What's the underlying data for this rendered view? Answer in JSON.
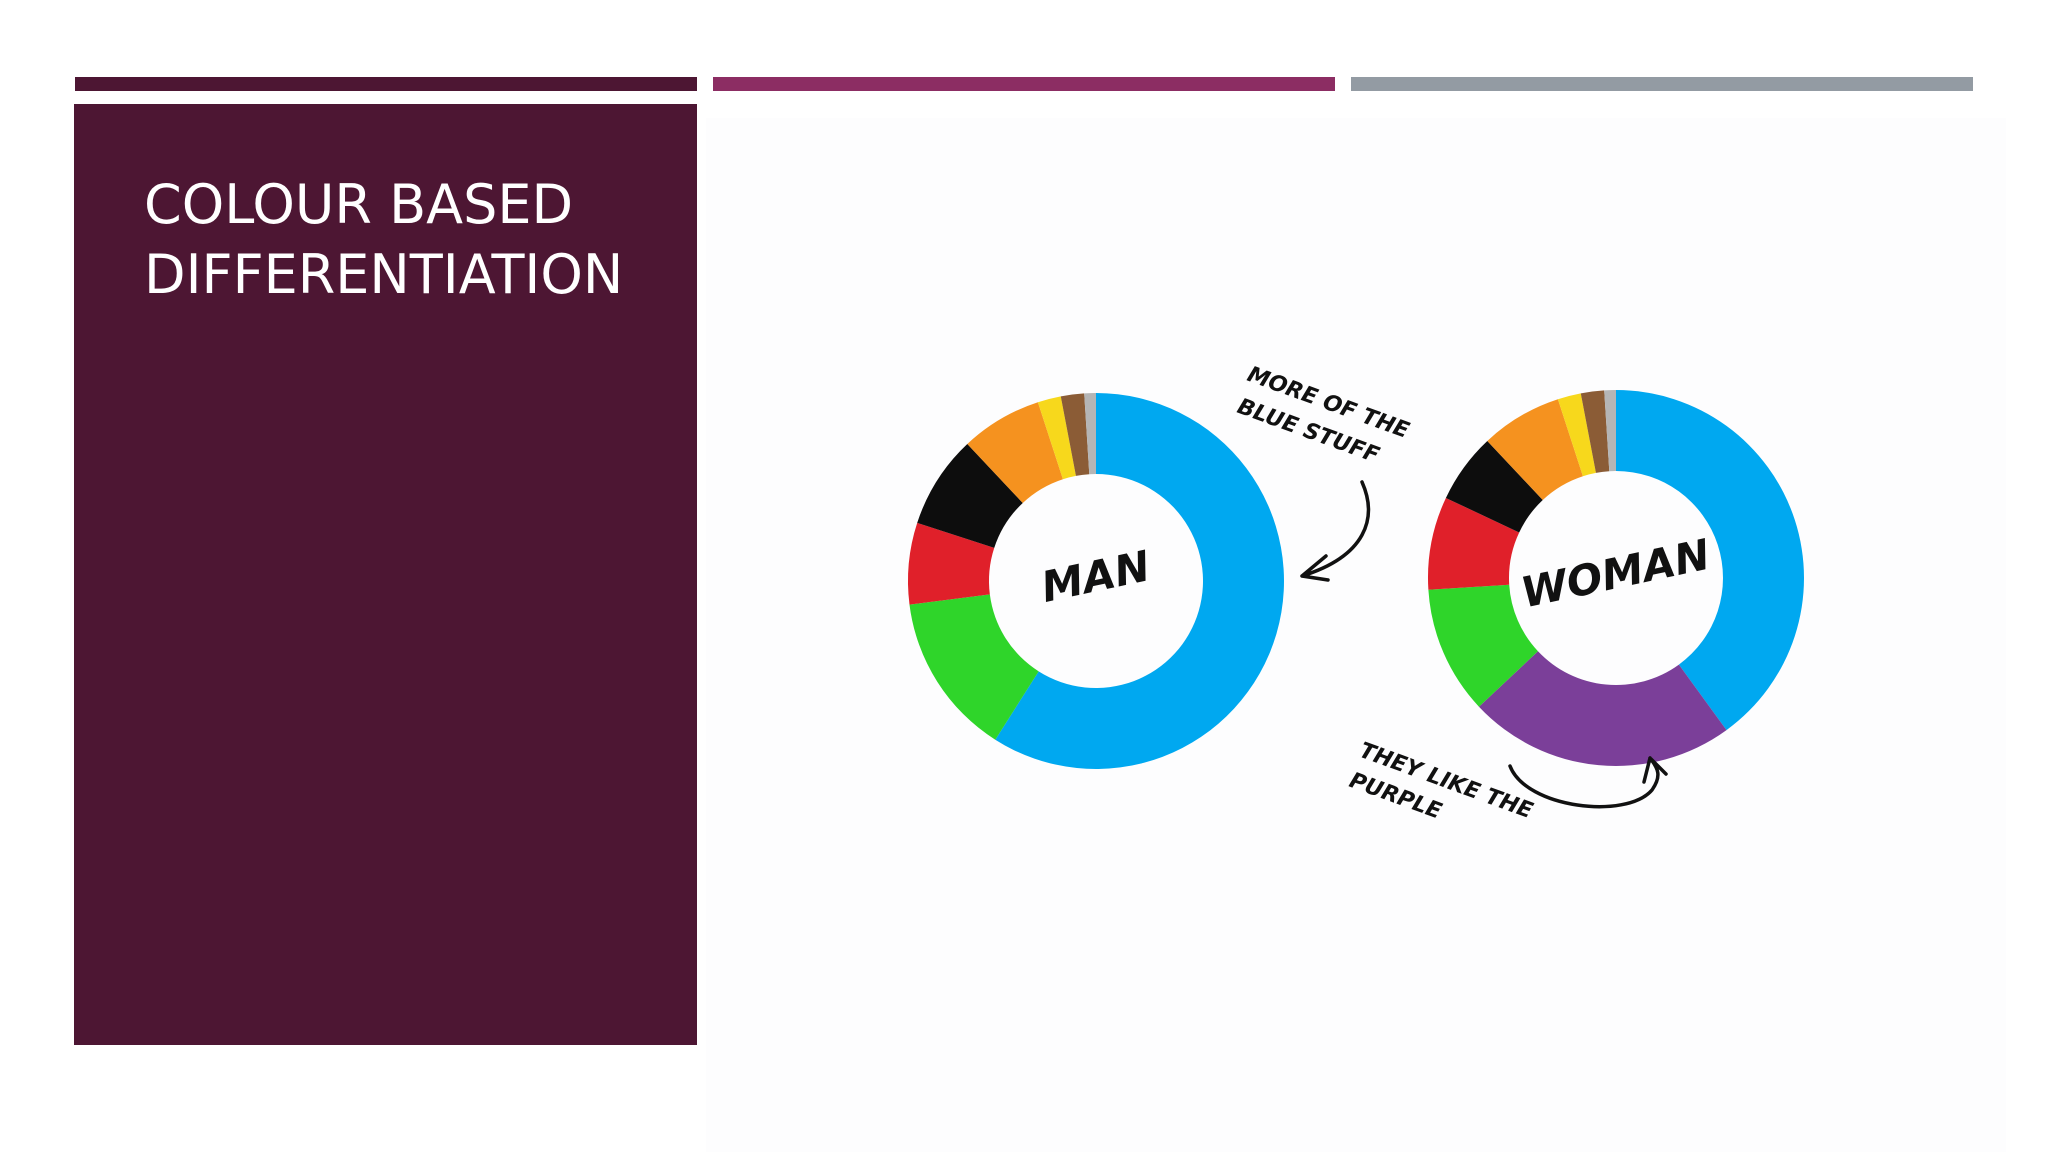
{
  "slide": {
    "title_lines": [
      "COLOUR BASED",
      "DIFFERENTIATION"
    ]
  },
  "colors": {
    "panel": "#4d1633",
    "accent_bar_1": "#4d1633",
    "accent_bar_2": "#8c2d63",
    "accent_bar_3": "#939ba3",
    "annotation_ink": "#111111"
  },
  "annotations": {
    "top_line1": "MORE OF THE",
    "top_line2": "BLUE STUFF",
    "bottom_line1": "THEY LIKE THE",
    "bottom_line2": "PURPLE"
  },
  "chart_data": [
    {
      "type": "pie",
      "donut": true,
      "center_label": "MAN",
      "segments": [
        {
          "color": "#00a8f0",
          "value": 59
        },
        {
          "color": "#2fd52a",
          "value": 14
        },
        {
          "color": "#e0202a",
          "value": 7
        },
        {
          "color": "#0d0d0d",
          "value": 8
        },
        {
          "color": "#f5921f",
          "value": 7
        },
        {
          "color": "#f7d81c",
          "value": 2
        },
        {
          "color": "#8b5c36",
          "value": 2
        },
        {
          "color": "#b5b5b5",
          "value": 1
        }
      ]
    },
    {
      "type": "pie",
      "donut": true,
      "center_label": "WOMAN",
      "segments": [
        {
          "color": "#00a8f0",
          "value": 40
        },
        {
          "color": "#7b3f99",
          "value": 23
        },
        {
          "color": "#2fd52a",
          "value": 11
        },
        {
          "color": "#e0202a",
          "value": 8
        },
        {
          "color": "#0d0d0d",
          "value": 6
        },
        {
          "color": "#f5921f",
          "value": 7
        },
        {
          "color": "#f7d81c",
          "value": 2
        },
        {
          "color": "#8b5c36",
          "value": 2
        },
        {
          "color": "#b5b5b5",
          "value": 1
        }
      ]
    }
  ]
}
